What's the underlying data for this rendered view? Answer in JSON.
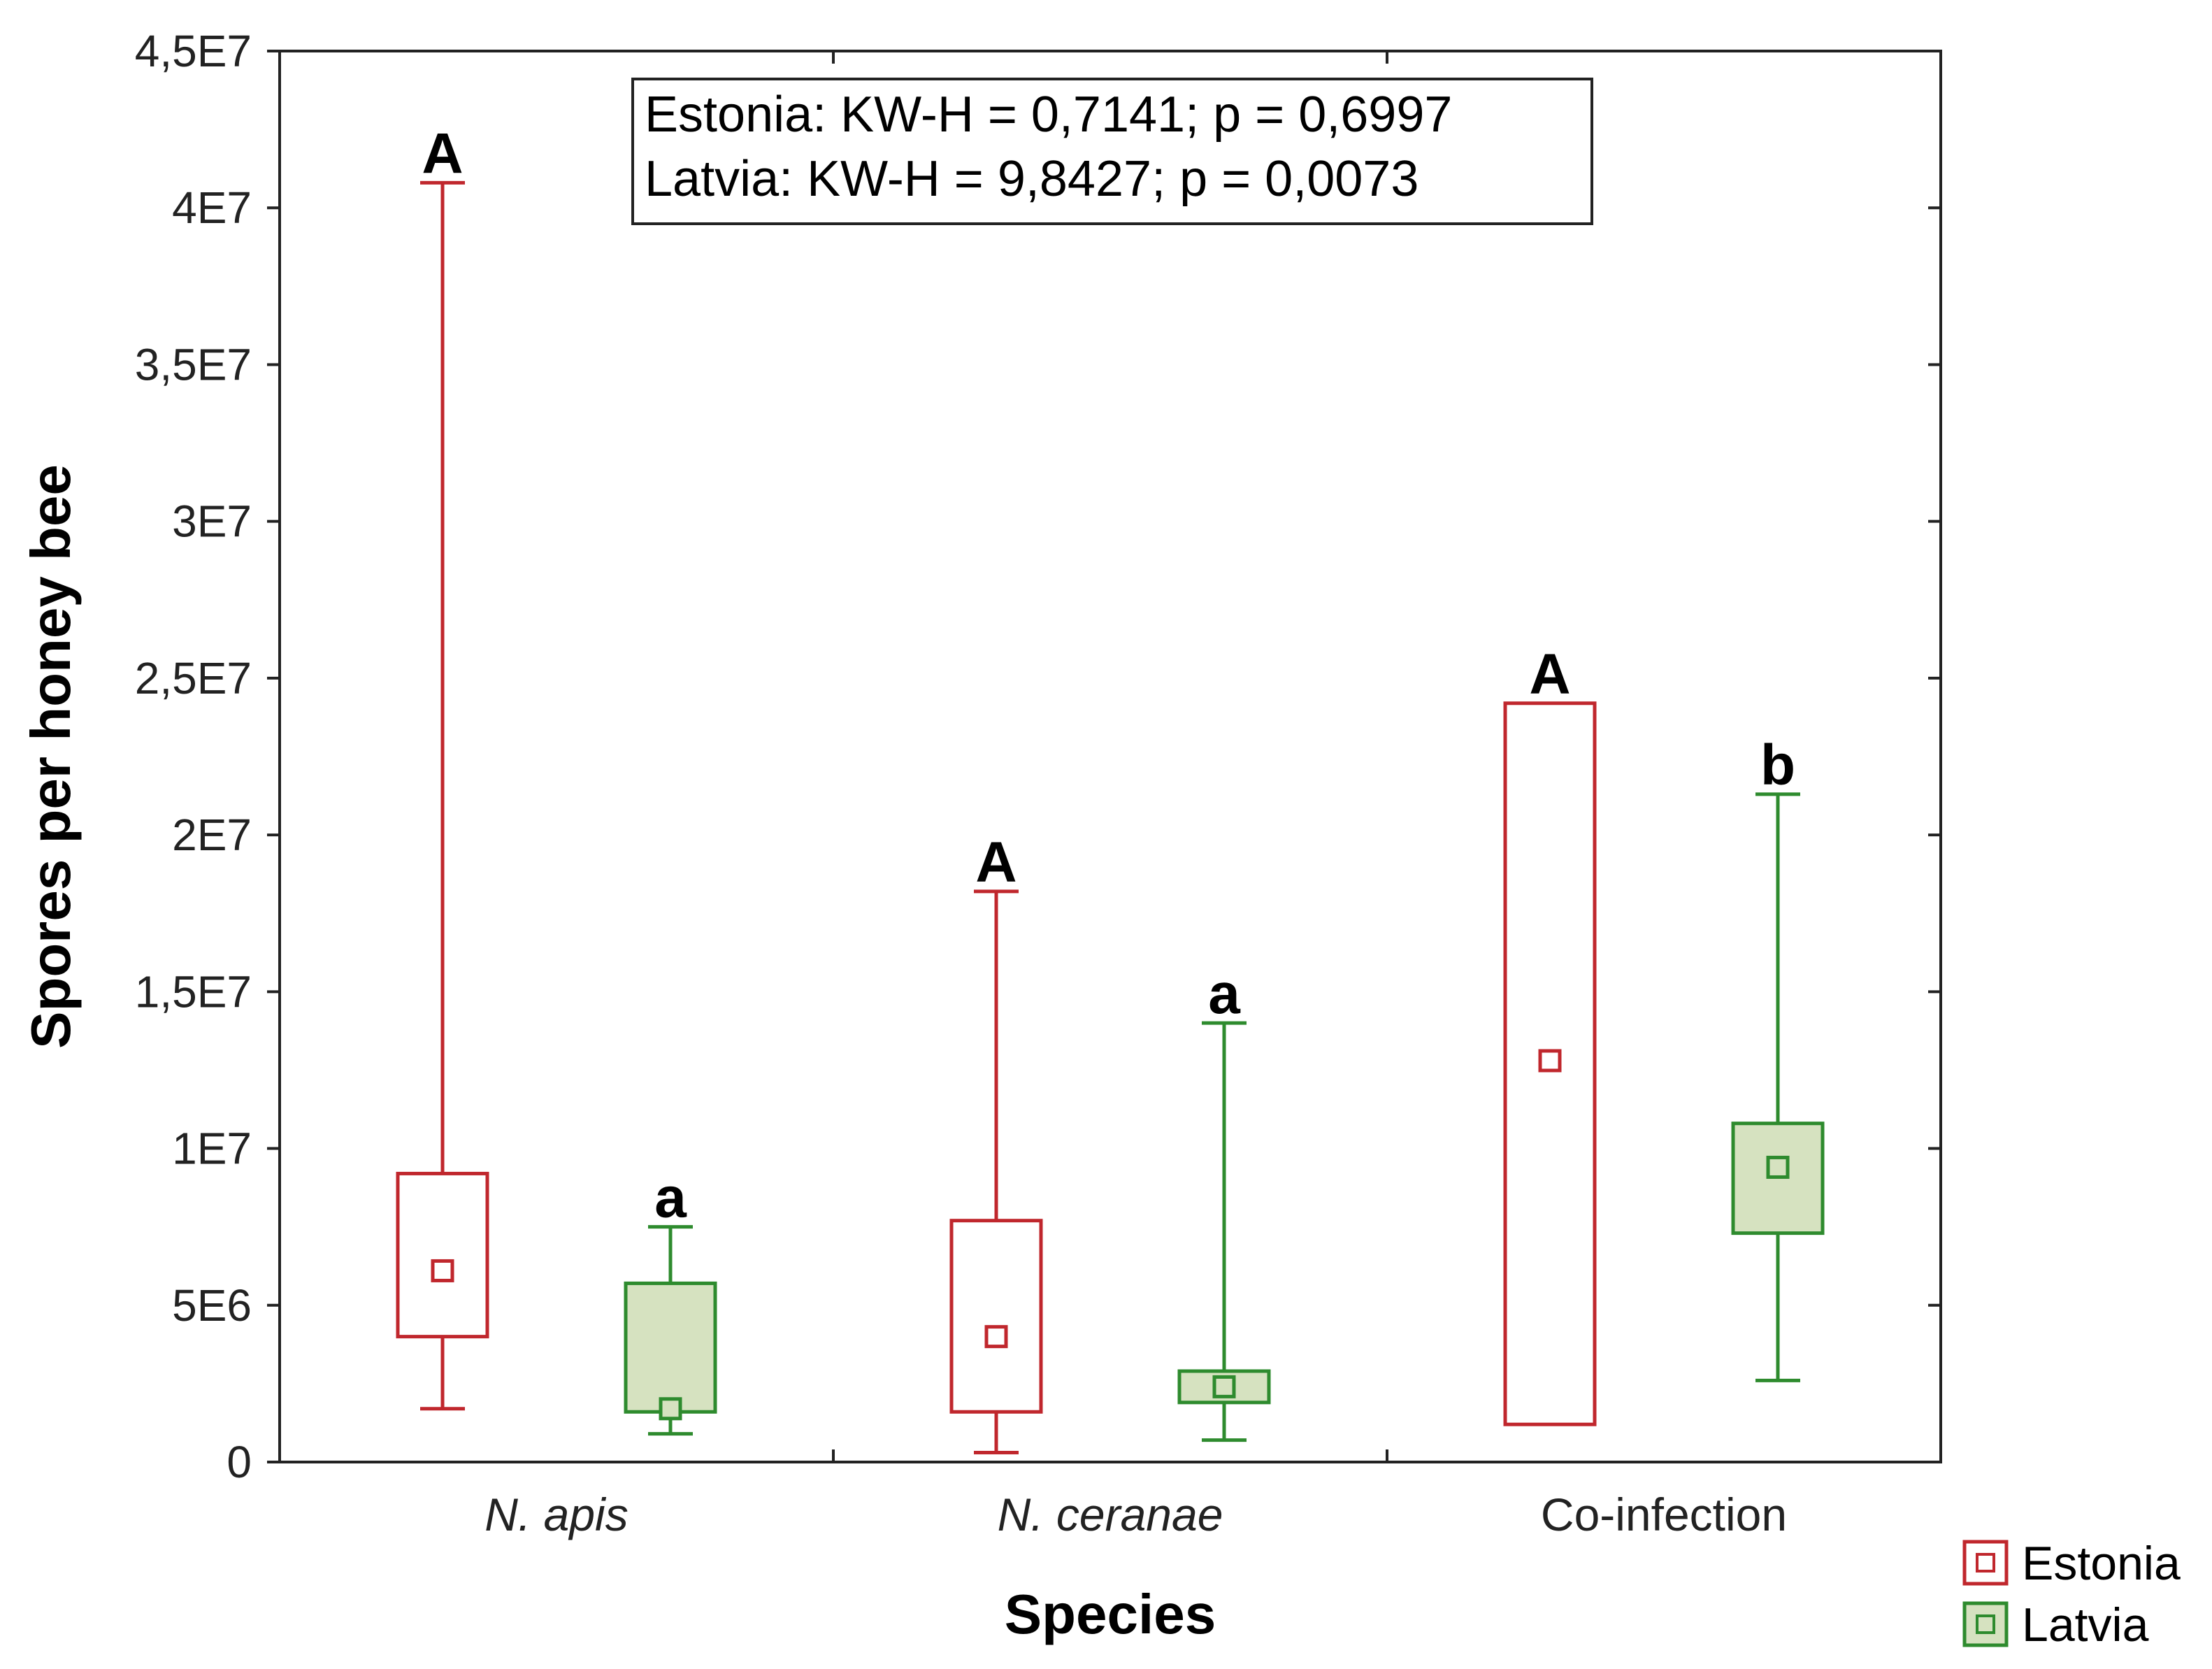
{
  "chart_data": {
    "type": "box",
    "title": "",
    "xlabel": "Species",
    "ylabel": "Spores per honey bee",
    "ylim": [
      0,
      45000000
    ],
    "yticks": [
      0,
      5000000,
      10000000,
      15000000,
      20000000,
      25000000,
      30000000,
      35000000,
      40000000,
      45000000
    ],
    "ytick_labels": [
      "0",
      "5E6",
      "1E7",
      "1,5E7",
      "2E7",
      "2,5E7",
      "3E7",
      "3,5E7",
      "4E7",
      "4,5E7"
    ],
    "categories": [
      "N. apis",
      "N. ceranae",
      "Co-infection"
    ],
    "series": [
      {
        "name": "Estonia",
        "color": "#c0272d",
        "fill": "#ffffff",
        "boxes": [
          {
            "whisker_low": 1700000,
            "q1": 4000000,
            "median": 6100000,
            "q3": 9200000,
            "whisker_high": 40800000,
            "letter": "A"
          },
          {
            "whisker_low": 300000,
            "q1": 1600000,
            "median": 4000000,
            "q3": 7700000,
            "whisker_high": 18200000,
            "letter": "A"
          },
          {
            "whisker_low": 1200000,
            "q1": 1200000,
            "median": 12800000,
            "q3": 24200000,
            "whisker_high": 24200000,
            "letter": "A"
          }
        ]
      },
      {
        "name": "Latvia",
        "color": "#2e8b2e",
        "fill": "#d6e2c0",
        "boxes": [
          {
            "whisker_low": 900000,
            "q1": 1600000,
            "median": 1700000,
            "q3": 5700000,
            "whisker_high": 7500000,
            "letter": "a"
          },
          {
            "whisker_low": 700000,
            "q1": 1900000,
            "median": 2400000,
            "q3": 2900000,
            "whisker_high": 14000000,
            "letter": "a"
          },
          {
            "whisker_low": 2600000,
            "q1": 7300000,
            "median": 9400000,
            "q3": 10800000,
            "whisker_high": 21300000,
            "letter": "b"
          }
        ]
      }
    ],
    "annotation_lines": [
      "Estonia: KW-H = 0,7141; p = 0,6997",
      "Latvia: KW-H = 9,8427; p = 0,0073"
    ],
    "legend": {
      "position": "bottom-right",
      "entries": [
        "Estonia",
        "Latvia"
      ]
    }
  }
}
